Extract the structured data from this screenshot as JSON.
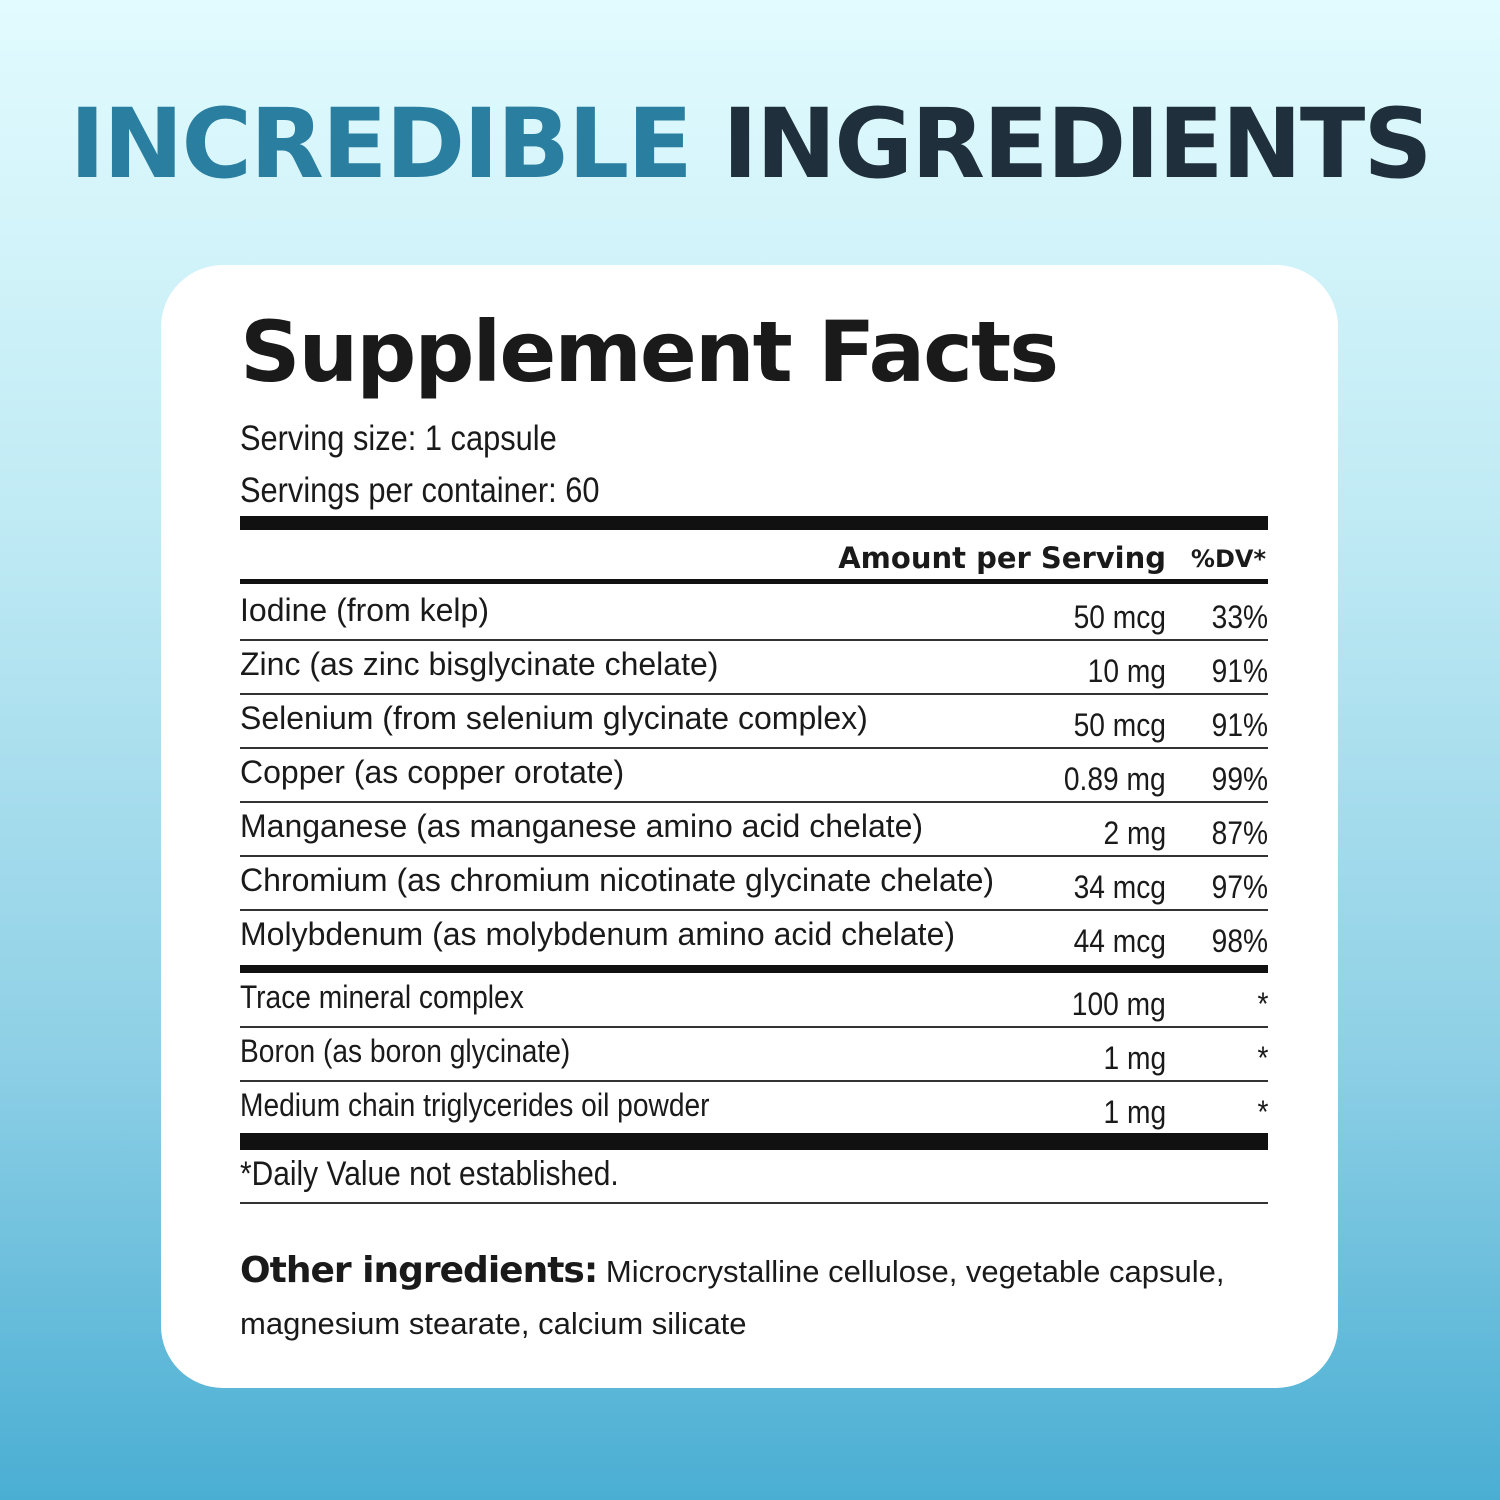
{
  "headline": {
    "part1": "INCREDIBLE",
    "part2": "INGREDIENTS",
    "colors": {
      "part1": "#2a7ea0",
      "part2": "#1f2f3b"
    }
  },
  "facts": {
    "title": "Supplement Facts",
    "serving_size": "Serving size: 1 capsule",
    "servings_per_container": "Servings per container: 60",
    "header": {
      "amount": "Amount per Serving",
      "dv": "%DV*"
    },
    "rows": [
      {
        "name": "Iodine (from kelp)",
        "amount": "50 mcg",
        "dv": "33%"
      },
      {
        "name": "Zinc (as zinc bisglycinate chelate)",
        "amount": "10 mg",
        "dv": "91%"
      },
      {
        "name": "Selenium (from selenium glycinate complex)",
        "amount": "50 mcg",
        "dv": "91%"
      },
      {
        "name": "Copper (as copper orotate)",
        "amount": "0.89 mg",
        "dv": "99%"
      },
      {
        "name": "Manganese (as manganese amino acid chelate)",
        "amount": "2 mg",
        "dv": "87%"
      },
      {
        "name": "Chromium (as chromium nicotinate glycinate chelate)",
        "amount": "34 mcg",
        "dv": "97%"
      },
      {
        "name": "Molybdenum (as molybdenum amino acid chelate)",
        "amount": "44 mcg",
        "dv": "98%"
      }
    ],
    "other_rows": [
      {
        "name": "Trace mineral complex",
        "amount": "100 mg",
        "dv": "*"
      },
      {
        "name": "Boron (as boron glycinate)",
        "amount": "1 mg",
        "dv": "*"
      },
      {
        "name": "Medium chain triglycerides oil powder",
        "amount": "1 mg",
        "dv": "*"
      }
    ],
    "footnote": "*Daily Value not established.",
    "other_label": "Other ingredients:",
    "other_text": "Microcrystalline cellulose, vegetable capsule, magnesium stearate, calcium silicate"
  }
}
